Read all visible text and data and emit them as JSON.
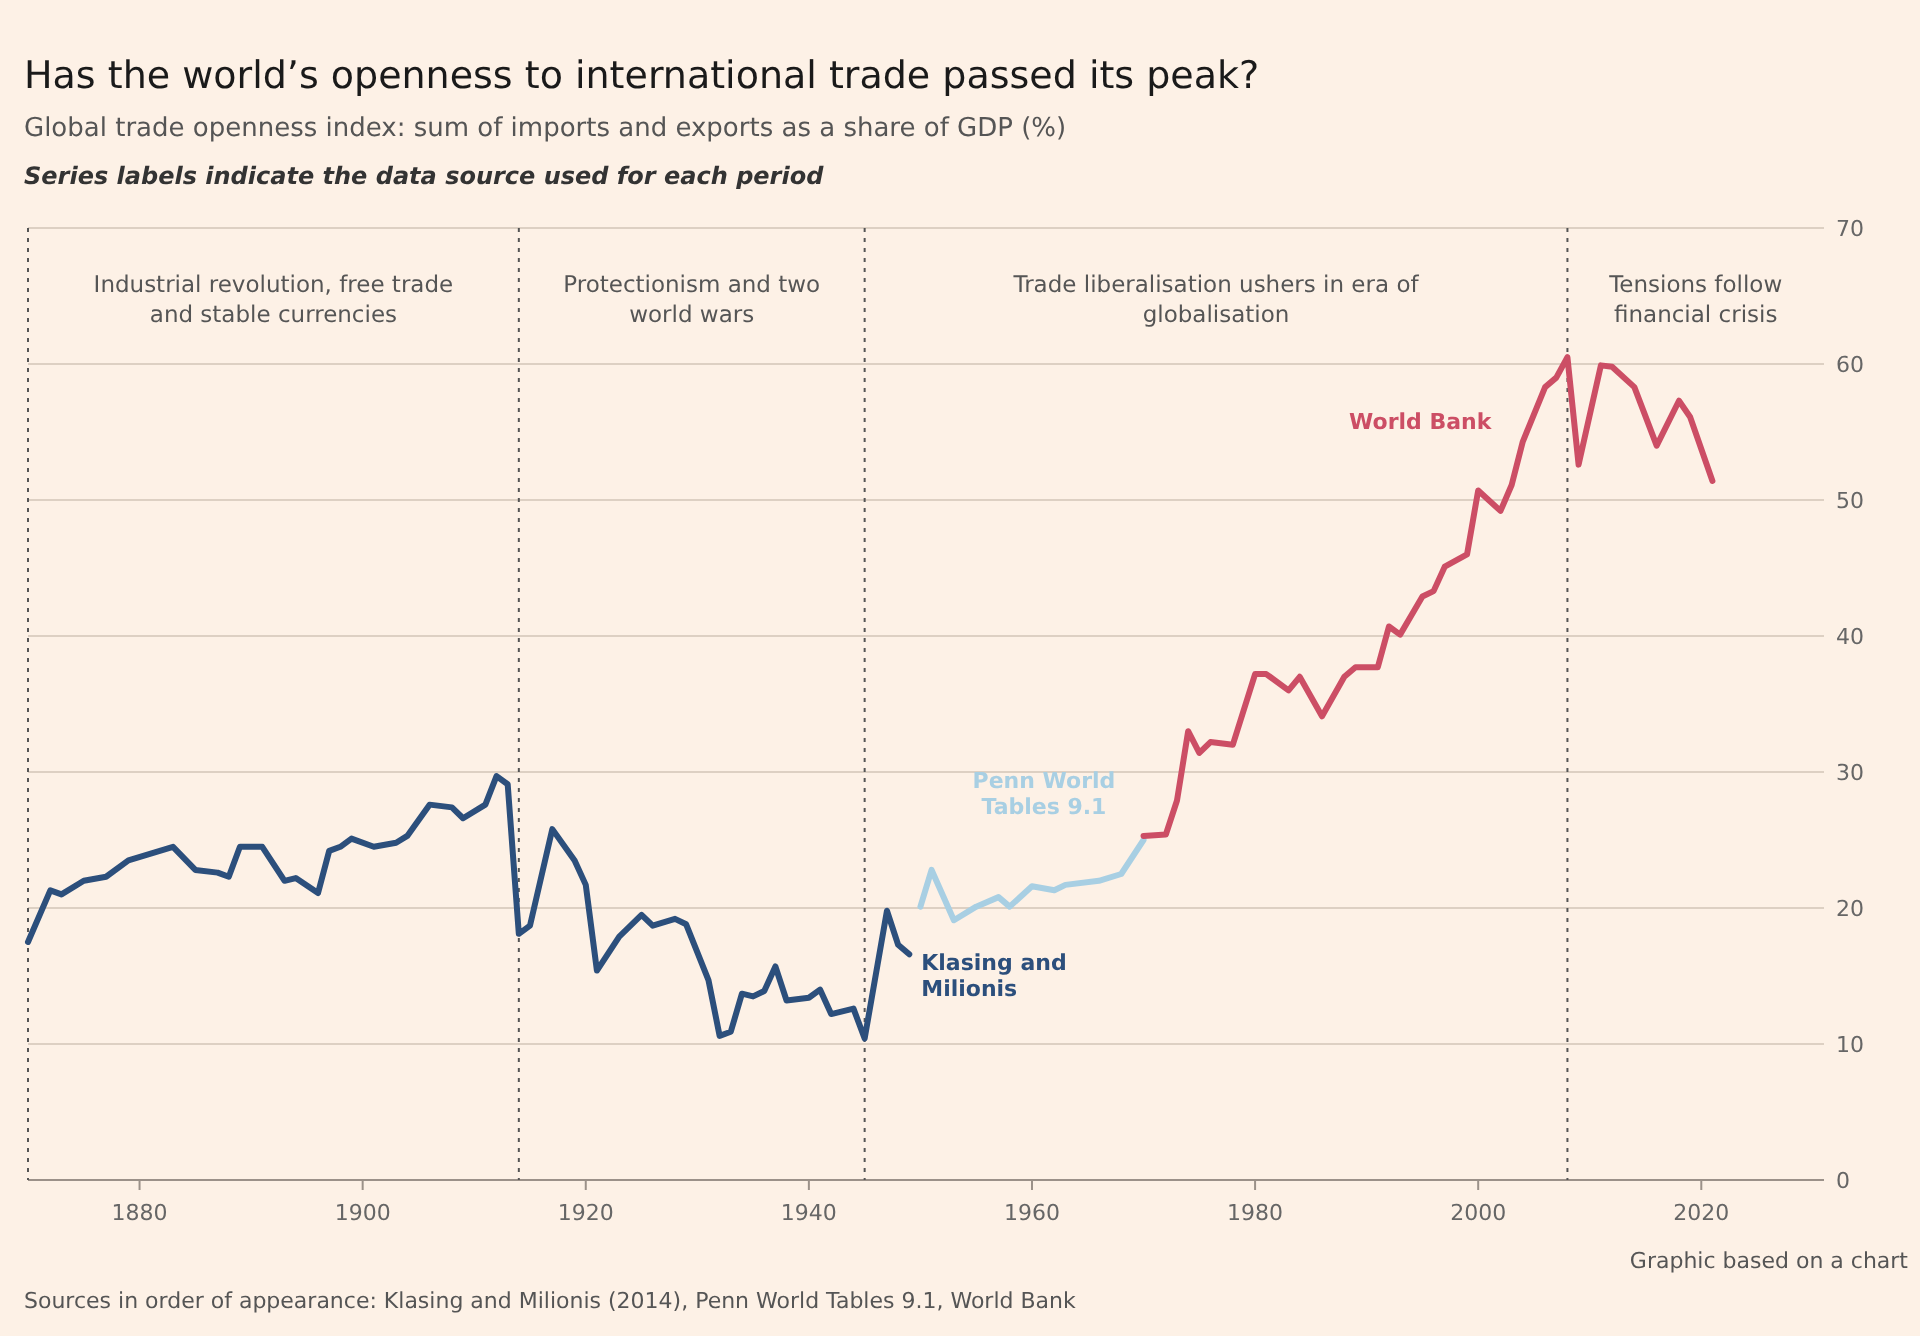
{
  "chart_data": {
    "type": "line",
    "title": "Has the world’s openness to international trade passed its peak?",
    "subtitle": "Global trade openness index: sum of imports and exports as a share of GDP (%)",
    "annotations": [
      "Series labels indicate the data source used for each period",
      "Graphic based on a chart",
      "Sources in order of appearance: Klasing and Milionis (2014), Penn World Tables 9.1, World Bank",
      "Industrial revolution, free trade and stable currencies",
      "Protectionism and two world wars",
      "Trade liberalisation ushers in era of globalisation",
      "Tensions follow financial crisis"
    ],
    "series": [
      {
        "name": "Klasing and Milionis",
        "color": "#2c4f7c",
        "x": [
          1870,
          1872,
          1873,
          1875,
          1877,
          1879,
          1881,
          1883,
          1885,
          1887,
          1888,
          1889,
          1891,
          1893,
          1894,
          1896,
          1897,
          1898,
          1899,
          1901,
          1903,
          1904,
          1906,
          1908,
          1909,
          1911,
          1912,
          1913,
          1914,
          1915,
          1917,
          1919,
          1920,
          1921,
          1923,
          1925,
          1926,
          1928,
          1929,
          1931,
          1932,
          1933,
          1934,
          1935,
          1936,
          1937,
          1938,
          1940,
          1941,
          1942,
          1944,
          1945,
          1947,
          1948,
          1949
        ],
        "values": [
          17.5,
          21.3,
          21,
          22,
          22.3,
          23.5,
          24,
          24.5,
          22.8,
          22.6,
          22.3,
          24.5,
          24.5,
          22,
          22.2,
          21.1,
          24.2,
          24.5,
          25.1,
          24.5,
          24.8,
          25.3,
          27.6,
          27.4,
          26.6,
          27.6,
          29.7,
          29.1,
          18.1,
          18.7,
          25.8,
          23.5,
          21.7,
          15.4,
          17.9,
          19.5,
          18.7,
          19.2,
          18.8,
          14.7,
          10.6,
          10.9,
          13.7,
          13.5,
          13.9,
          15.7,
          13.2,
          13.4,
          14,
          12.2,
          12.6,
          10.4,
          19.8,
          17.3,
          16.6
        ]
      },
      {
        "name": "Penn World Tables 9.1",
        "color": "#a8cfe3",
        "x": [
          1950,
          1951,
          1953,
          1955,
          1957,
          1958,
          1960,
          1962,
          1963,
          1966,
          1968,
          1970
        ],
        "values": [
          20.1,
          22.8,
          19.1,
          20.1,
          20.8,
          20.1,
          21.6,
          21.3,
          21.7,
          22,
          22.5,
          25
        ]
      },
      {
        "name": "World Bank",
        "color": "#cc4e65",
        "x": [
          1970,
          1972,
          1973,
          1974,
          1975,
          1976,
          1978,
          1980,
          1981,
          1983,
          1984,
          1986,
          1988,
          1989,
          1991,
          1992,
          1993,
          1995,
          1996,
          1997,
          1999,
          2000,
          2002,
          2003,
          2004,
          2006,
          2007,
          2008,
          2009,
          2011,
          2012,
          2014,
          2016,
          2018,
          2019,
          2021
        ],
        "values": [
          25.3,
          25.4,
          27.9,
          33,
          31.4,
          32.2,
          32,
          37.2,
          37.2,
          36,
          37,
          34.1,
          37,
          37.7,
          37.7,
          40.7,
          40.1,
          42.9,
          43.3,
          45.1,
          46,
          50.7,
          49.2,
          51.1,
          54.3,
          58.3,
          59,
          60.5,
          52.6,
          59.9,
          59.8,
          58.3,
          54,
          57.3,
          56.1,
          51.4
        ]
      }
    ],
    "xlim": [
      1870,
      2031
    ],
    "xticks": [
      1880,
      1900,
      1920,
      1940,
      1960,
      1980,
      2000,
      2020
    ],
    "ylim": [
      0,
      70
    ],
    "yticks": [
      0,
      10,
      20,
      30,
      40,
      50,
      60,
      70
    ],
    "ref_lines": [
      {
        "axis": "x",
        "value": 1870,
        "line_style": "dotted"
      },
      {
        "axis": "x",
        "value": 1914,
        "line_style": "dotted"
      },
      {
        "axis": "x",
        "value": 1945,
        "line_style": "dotted"
      },
      {
        "axis": "x",
        "value": 2008,
        "line_style": "dotted"
      }
    ],
    "grid": "y",
    "marker": "none",
    "line_style": "solid"
  }
}
